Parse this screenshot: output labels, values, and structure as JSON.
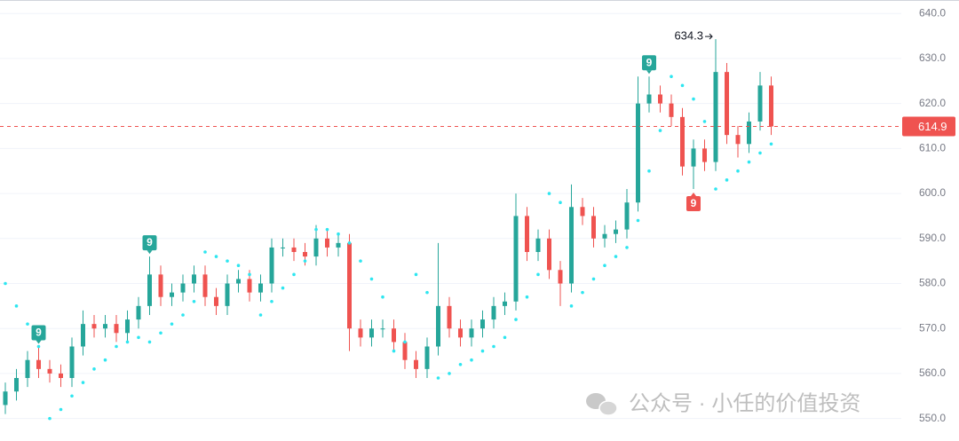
{
  "chart_data": {
    "type": "candlestick",
    "open": [
      553,
      556,
      559,
      563,
      561,
      560,
      559,
      566,
      571,
      570,
      571,
      569,
      572,
      575,
      582,
      577,
      578,
      580,
      582,
      577,
      575,
      580,
      581,
      578,
      580,
      588,
      588,
      587,
      586,
      590,
      588,
      589,
      570,
      568,
      570,
      570,
      567,
      563,
      561,
      566,
      575,
      570,
      568,
      570,
      572,
      575,
      576,
      595,
      587,
      590,
      583,
      580,
      597,
      595,
      590,
      591,
      592,
      598,
      620,
      622,
      620,
      617,
      606,
      610,
      607,
      627,
      613,
      611,
      616,
      624
    ],
    "high": [
      558,
      561,
      565,
      566,
      563,
      562,
      568,
      574,
      573,
      573,
      573,
      574,
      577,
      586,
      584,
      580,
      582,
      584,
      584,
      579,
      582,
      583,
      583,
      582,
      590,
      590,
      590,
      589,
      593,
      592,
      591,
      591,
      572,
      572,
      572,
      572,
      569,
      565,
      568,
      589,
      577,
      572,
      572,
      574,
      577,
      578,
      600,
      597,
      592,
      592,
      585,
      602,
      599,
      597,
      593,
      594,
      601,
      626,
      626,
      624,
      622,
      619,
      612,
      612,
      634.3,
      629,
      615,
      618,
      627,
      626
    ],
    "low": [
      551,
      554,
      557,
      559,
      558,
      557,
      557,
      564,
      568,
      568,
      567,
      567,
      570,
      573,
      575,
      575,
      576,
      578,
      575,
      573,
      573,
      578,
      576,
      576,
      578,
      586,
      585,
      584,
      584,
      586,
      586,
      565,
      566,
      566,
      568,
      565,
      561,
      559,
      559,
      564,
      568,
      566,
      566,
      568,
      570,
      573,
      574,
      585,
      585,
      581,
      575,
      578,
      593,
      588,
      588,
      589,
      590,
      596,
      618,
      618,
      615,
      604,
      601,
      605,
      605,
      611,
      608,
      609,
      614,
      613
    ],
    "close": [
      556,
      559,
      563,
      561,
      560,
      559,
      566,
      571,
      570,
      571,
      569,
      572,
      575,
      582,
      577,
      578,
      580,
      582,
      577,
      575,
      580,
      581,
      578,
      580,
      588,
      588,
      587,
      586,
      590,
      588,
      589,
      570,
      568,
      570,
      570,
      567,
      563,
      561,
      566,
      575,
      570,
      568,
      570,
      572,
      575,
      576,
      595,
      587,
      590,
      583,
      580,
      597,
      595,
      590,
      591,
      592,
      598,
      620,
      622,
      620,
      617,
      606,
      610,
      607,
      627,
      613,
      611,
      616,
      624,
      614.9
    ],
    "sar": [
      580,
      575,
      571,
      566,
      550,
      552,
      555,
      558,
      561,
      563,
      566,
      567,
      568,
      567,
      569,
      571,
      573,
      576,
      587,
      586,
      585,
      584,
      582,
      573,
      576,
      579,
      582,
      585,
      592,
      592,
      591,
      589,
      585,
      581,
      577,
      565,
      567,
      582,
      578,
      559,
      560,
      562,
      563,
      565,
      566,
      568,
      572,
      577,
      582,
      600,
      598,
      575,
      578,
      581,
      584,
      586,
      588,
      594,
      605,
      614,
      626,
      624,
      621,
      616,
      601,
      603,
      605,
      607,
      609,
      611
    ],
    "up_color": "#26a69a",
    "down_color": "#ef5350",
    "sar_color": "#2ee6f0",
    "ylim": [
      545,
      643
    ],
    "yticks": [
      {
        "value": 550,
        "label": "550.0"
      },
      {
        "value": 560,
        "label": "560.0"
      },
      {
        "value": 570,
        "label": "570.0"
      },
      {
        "value": 580,
        "label": "580.0"
      },
      {
        "value": 590,
        "label": "590.0"
      },
      {
        "value": 600,
        "label": "600.0"
      },
      {
        "value": 610,
        "label": "610.0"
      },
      {
        "value": 620,
        "label": "620.0"
      },
      {
        "value": 630,
        "label": "630.0"
      },
      {
        "value": 640,
        "label": "640.0"
      }
    ],
    "grid": true,
    "td_signals": [
      {
        "index": 3,
        "label": "9",
        "side": "above"
      },
      {
        "index": 13,
        "label": "9",
        "side": "above"
      },
      {
        "index": 58,
        "label": "9",
        "side": "above"
      },
      {
        "index": 62,
        "label": "9",
        "side": "below"
      }
    ],
    "watermark": "公众号 · 小任的价值投资"
  }
}
